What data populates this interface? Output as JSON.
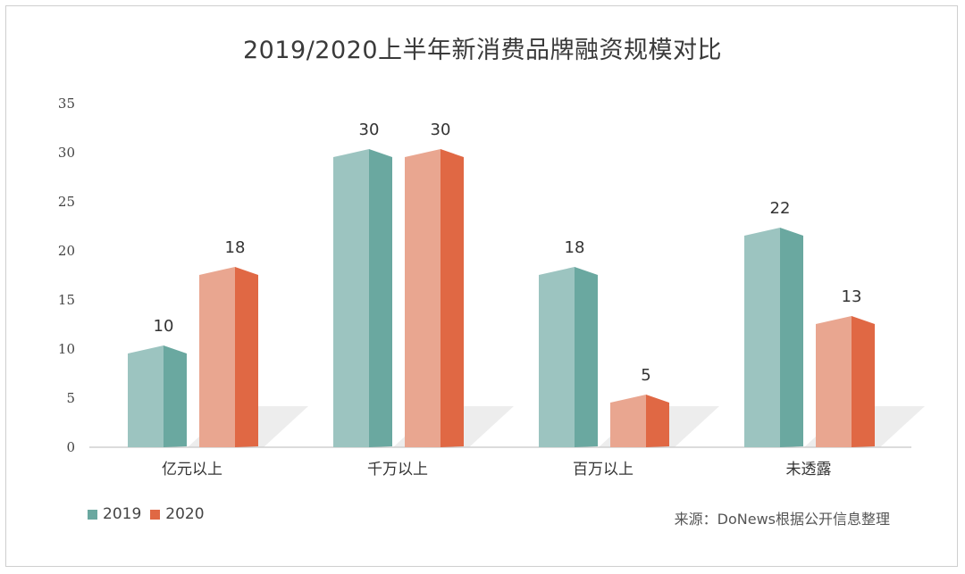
{
  "chart_data": {
    "type": "bar",
    "title": "2019/2020上半年新消费品牌融资规模对比",
    "categories": [
      "亿元以上",
      "千万以上",
      "百万以上",
      "未透露"
    ],
    "series": [
      {
        "name": "2019",
        "values": [
          10,
          30,
          18,
          22
        ]
      },
      {
        "name": "2020",
        "values": [
          18,
          30,
          5,
          13
        ]
      }
    ],
    "ylim": [
      0,
      35
    ],
    "yticks": [
      0,
      5,
      10,
      15,
      20,
      25,
      30,
      35
    ],
    "xlabel": "",
    "ylabel": "",
    "legend_position": "bottom-left",
    "source": "来源：DoNews根据公开信息整理",
    "colors": {
      "s2019_front": "#9cc4c0",
      "s2019_side": "#6aa8a0",
      "s2020_front": "#e9a690",
      "s2020_side": "#e06844"
    }
  }
}
